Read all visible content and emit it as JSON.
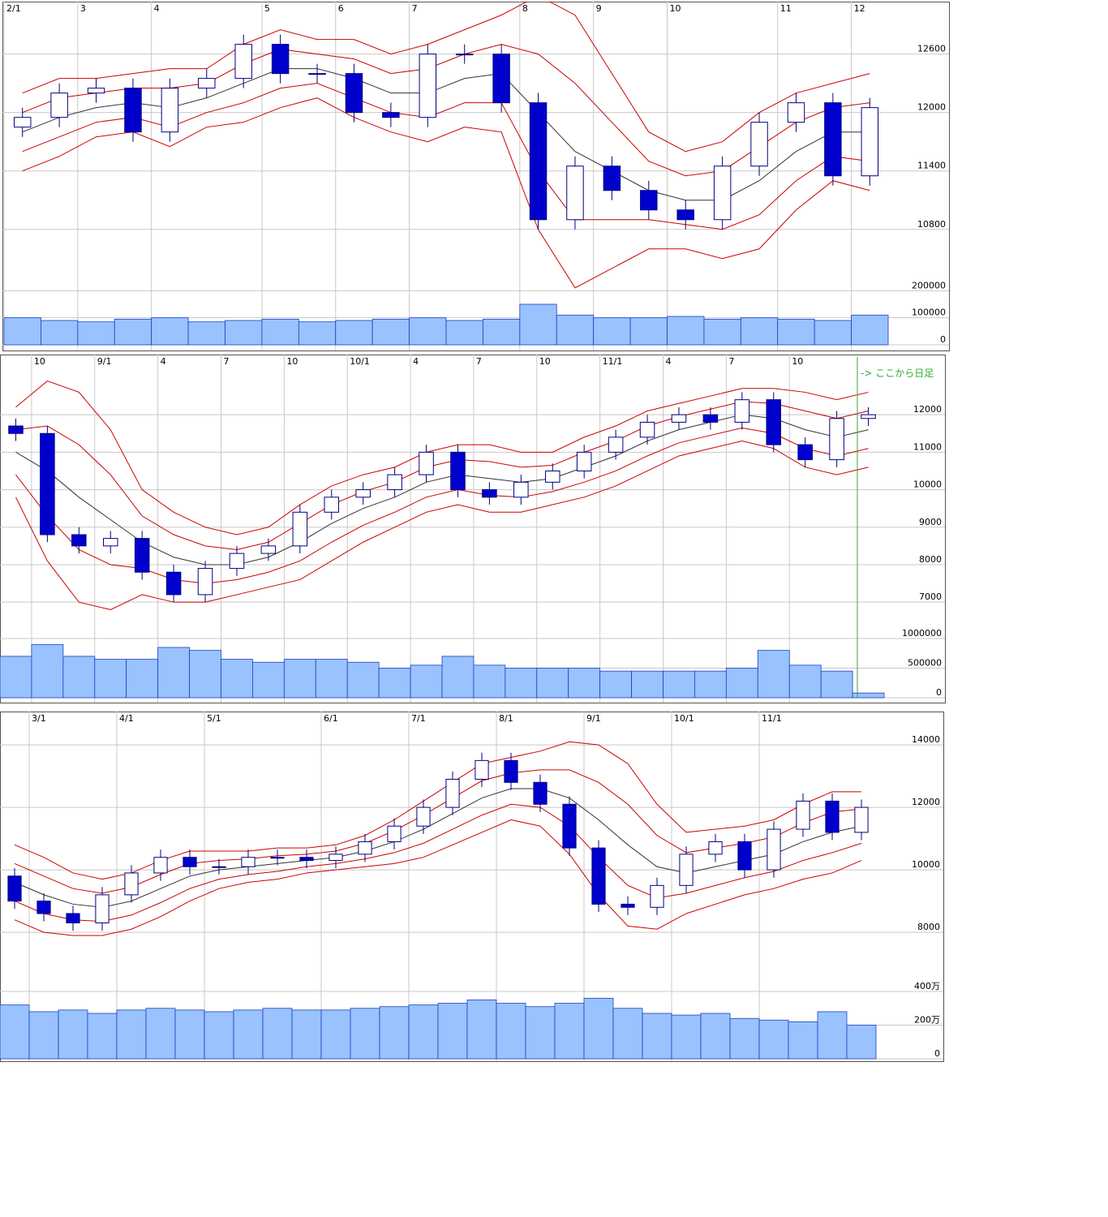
{
  "chart_data": [
    {
      "type": "candlestick",
      "color": "#0000cc",
      "grid": true,
      "categories": [
        "2/1",
        null,
        "3",
        null,
        "4",
        null,
        null,
        "5",
        null,
        "6",
        null,
        "7",
        null,
        null,
        "8",
        null,
        "9",
        null,
        "10",
        null,
        null,
        "11",
        null,
        "12"
      ],
      "open": [
        11850,
        11950,
        12200,
        12250,
        11800,
        12250,
        12350,
        12700,
        12400,
        12400,
        12000,
        11950,
        12600,
        12600,
        12100,
        10900,
        11450,
        11200,
        11000,
        10900,
        11450,
        11900,
        12100,
        11350
      ],
      "high": [
        12050,
        12300,
        12350,
        12350,
        12350,
        12450,
        12800,
        12800,
        12500,
        12500,
        12100,
        12700,
        12700,
        12700,
        12200,
        11550,
        11550,
        11300,
        11100,
        11550,
        12000,
        12200,
        12200,
        12150
      ],
      "low": [
        11750,
        11850,
        12100,
        11700,
        11700,
        12150,
        12250,
        12300,
        12300,
        11900,
        11850,
        11850,
        12500,
        12000,
        10800,
        10800,
        11100,
        10900,
        10800,
        10800,
        11350,
        11800,
        11250,
        11250
      ],
      "close": [
        11950,
        12200,
        12250,
        11800,
        12250,
        12350,
        12700,
        12400,
        12400,
        12000,
        11950,
        12600,
        12600,
        12100,
        10900,
        11450,
        11200,
        11000,
        10900,
        11450,
        11900,
        12100,
        11350,
        12050
      ],
      "ylim": [
        10140,
        13130
      ],
      "yticks": [
        10800,
        11400,
        12000,
        12600
      ],
      "bands": [
        {
          "color": "#cc0000",
          "values": [
            12200,
            12350,
            12350,
            12400,
            12450,
            12450,
            12700,
            12850,
            12750,
            12750,
            12600,
            12700,
            12850,
            13000,
            13200,
            13000,
            12400,
            11800,
            11600,
            11700,
            12000,
            12200,
            12300,
            12400
          ]
        },
        {
          "color": "#cc0000",
          "values": [
            12000,
            12150,
            12200,
            12250,
            12250,
            12300,
            12500,
            12650,
            12600,
            12550,
            12400,
            12450,
            12600,
            12700,
            12600,
            12300,
            11900,
            11500,
            11350,
            11400,
            11650,
            11900,
            12050,
            12100
          ]
        },
        {
          "color": "#333333",
          "values": [
            11800,
            11950,
            12050,
            12100,
            12050,
            12150,
            12300,
            12450,
            12450,
            12350,
            12200,
            12200,
            12350,
            12400,
            12000,
            11600,
            11400,
            11200,
            11100,
            11100,
            11300,
            11600,
            11800,
            11800
          ]
        },
        {
          "color": "#cc0000",
          "values": [
            11600,
            11750,
            11900,
            11950,
            11850,
            12000,
            12100,
            12250,
            12300,
            12150,
            12000,
            11950,
            12100,
            12100,
            11400,
            10900,
            10900,
            10900,
            10850,
            10800,
            10950,
            11300,
            11550,
            11500
          ]
        },
        {
          "color": "#cc0000",
          "values": [
            11400,
            11550,
            11750,
            11800,
            11650,
            11850,
            11900,
            12050,
            12150,
            11950,
            11800,
            11700,
            11850,
            11800,
            10800,
            10200,
            10400,
            10600,
            10600,
            10500,
            10600,
            11000,
            11300,
            11200
          ]
        }
      ],
      "volume": {
        "color": "#99c2ff",
        "values": [
          100000,
          90000,
          85000,
          95000,
          100000,
          85000,
          90000,
          95000,
          85000,
          90000,
          95000,
          100000,
          90000,
          95000,
          150000,
          110000,
          100000,
          100000,
          105000,
          95000,
          100000,
          95000,
          90000,
          110000
        ],
        "ylim": [
          0,
          240000
        ],
        "yticks": [
          0,
          100000,
          200000
        ]
      }
    },
    {
      "type": "candlestick",
      "color": "#0000cc",
      "grid": true,
      "annotation": "-> ここから日足",
      "categories": [
        null,
        "10",
        null,
        "9/1",
        null,
        "4",
        null,
        "7",
        null,
        "10",
        null,
        "10/1",
        null,
        "4",
        null,
        "7",
        null,
        "10",
        null,
        "11/1",
        null,
        "4",
        null,
        "7",
        null,
        "10",
        null,
        null
      ],
      "open": [
        11700,
        11500,
        8800,
        8500,
        8700,
        7800,
        7200,
        7900,
        8300,
        8500,
        9400,
        9800,
        10000,
        10400,
        11000,
        10000,
        9800,
        10200,
        10500,
        11000,
        11400,
        11800,
        12000,
        11800,
        12400,
        11200,
        10800,
        11900
      ],
      "high": [
        11900,
        11700,
        9000,
        8900,
        8900,
        8000,
        8100,
        8500,
        8700,
        9600,
        10000,
        10200,
        10600,
        11200,
        11200,
        10200,
        10400,
        10700,
        11200,
        11600,
        12000,
        12200,
        12200,
        12600,
        12600,
        11400,
        12100,
        12200
      ],
      "low": [
        11300,
        8600,
        8300,
        8300,
        7600,
        7000,
        7000,
        7700,
        8100,
        8300,
        9200,
        9600,
        9800,
        10200,
        9800,
        9600,
        9600,
        10000,
        10300,
        10800,
        11200,
        11600,
        11600,
        11600,
        11000,
        10600,
        10600,
        11700
      ],
      "close": [
        11500,
        8800,
        8500,
        8700,
        7800,
        7200,
        7900,
        8300,
        8500,
        9400,
        9800,
        10000,
        10400,
        11000,
        10000,
        9800,
        10200,
        10500,
        11000,
        11400,
        11800,
        12000,
        11800,
        12400,
        11200,
        10800,
        11900,
        12000
      ],
      "ylim": [
        4450,
        13540
      ],
      "yticks": [
        7000,
        8000,
        9000,
        10000,
        11000,
        12000
      ],
      "bands": [
        {
          "color": "#cc0000",
          "values": [
            12200,
            12900,
            12600,
            11600,
            10000,
            9400,
            9000,
            8800,
            9000,
            9600,
            10100,
            10400,
            10600,
            11000,
            11200,
            11200,
            11000,
            11000,
            11400,
            11700,
            12100,
            12300,
            12500,
            12700,
            12700,
            12600,
            12400,
            12600
          ]
        },
        {
          "color": "#cc0000",
          "values": [
            11600,
            11700,
            11200,
            10400,
            9300,
            8800,
            8500,
            8400,
            8600,
            9100,
            9600,
            9950,
            10200,
            10600,
            10800,
            10750,
            10600,
            10650,
            11000,
            11300,
            11700,
            11950,
            12150,
            12350,
            12300,
            12100,
            11900,
            12100
          ]
        },
        {
          "color": "#333333",
          "values": [
            11000,
            10500,
            9800,
            9200,
            8600,
            8200,
            8000,
            8000,
            8200,
            8600,
            9100,
            9500,
            9800,
            10200,
            10400,
            10300,
            10200,
            10300,
            10600,
            10900,
            11300,
            11600,
            11800,
            12000,
            11900,
            11600,
            11400,
            11600
          ]
        },
        {
          "color": "#cc0000",
          "values": [
            10400,
            9300,
            8400,
            8000,
            7900,
            7600,
            7500,
            7600,
            7800,
            8100,
            8600,
            9050,
            9400,
            9800,
            10000,
            9850,
            9800,
            9950,
            10200,
            10500,
            10900,
            11250,
            11450,
            11650,
            11500,
            11100,
            10900,
            11100
          ]
        },
        {
          "color": "#cc0000",
          "values": [
            9800,
            8100,
            7000,
            6800,
            7200,
            7000,
            7000,
            7200,
            7400,
            7600,
            8100,
            8600,
            9000,
            9400,
            9600,
            9400,
            9400,
            9600,
            9800,
            10100,
            10500,
            10900,
            11100,
            11300,
            11100,
            10600,
            10400,
            10600
          ]
        }
      ],
      "volume": {
        "color": "#99c2ff",
        "values": [
          700000,
          900000,
          700000,
          650000,
          650000,
          850000,
          800000,
          650000,
          600000,
          650000,
          650000,
          600000,
          500000,
          550000,
          700000,
          550000,
          500000,
          500000,
          500000,
          450000,
          450000,
          450000,
          450000,
          500000,
          800000,
          550000,
          450000,
          80000
        ],
        "ylim": [
          0,
          1370000
        ],
        "yticks": [
          0,
          500000,
          1000000
        ]
      }
    },
    {
      "type": "candlestick",
      "color": "#0000cc",
      "grid": true,
      "categories": [
        null,
        "3/1",
        null,
        null,
        "4/1",
        null,
        null,
        "5/1",
        null,
        null,
        null,
        "6/1",
        null,
        null,
        "7/1",
        null,
        null,
        "8/1",
        null,
        null,
        "9/1",
        null,
        null,
        "10/1",
        null,
        null,
        "11/1",
        null,
        null,
        null
      ],
      "open": [
        9800,
        9000,
        8600,
        8300,
        9200,
        9900,
        10400,
        10100,
        10100,
        10400,
        10400,
        10300,
        10500,
        10900,
        11400,
        12000,
        12900,
        13500,
        12800,
        12100,
        10700,
        8900,
        8800,
        9500,
        10500,
        10900,
        10000,
        11300,
        12200,
        11200
      ],
      "high": [
        10050,
        9250,
        8850,
        9450,
        10150,
        10650,
        10650,
        10350,
        10650,
        10650,
        10650,
        10750,
        11150,
        11650,
        12250,
        13150,
        13750,
        13750,
        13050,
        12350,
        10950,
        9150,
        9750,
        10750,
        11150,
        11150,
        11550,
        12450,
        12450,
        12250
      ],
      "low": [
        8750,
        8350,
        8050,
        8050,
        8950,
        9650,
        9850,
        9850,
        9850,
        10150,
        10050,
        10050,
        10250,
        10650,
        11150,
        11750,
        12650,
        12550,
        11850,
        10450,
        8650,
        8550,
        8550,
        9250,
        10250,
        9750,
        9750,
        11050,
        10950,
        10950
      ],
      "close": [
        9000,
        8600,
        8300,
        9200,
        9900,
        10400,
        10100,
        10100,
        10400,
        10400,
        10300,
        10500,
        10900,
        11400,
        12000,
        12900,
        13500,
        12800,
        12100,
        10700,
        8900,
        8800,
        9500,
        10500,
        10900,
        10000,
        11300,
        12200,
        11200,
        12000
      ],
      "ylim": [
        3950,
        14990
      ],
      "yticks": [
        8000,
        10000,
        12000,
        14000
      ],
      "bands": [
        {
          "color": "#cc0000",
          "values": [
            10800,
            10400,
            9900,
            9700,
            9900,
            10300,
            10600,
            10600,
            10600,
            10700,
            10700,
            10800,
            11100,
            11600,
            12200,
            12800,
            13400,
            13600,
            13800,
            14100,
            14000,
            13400,
            12100,
            11200,
            11300,
            11400,
            11600,
            12100,
            12500,
            12500
          ]
        },
        {
          "color": "#cc0000",
          "values": [
            10200,
            9800,
            9400,
            9250,
            9450,
            9850,
            10200,
            10300,
            10350,
            10450,
            10500,
            10600,
            10850,
            11250,
            11750,
            12300,
            12850,
            13100,
            13200,
            13200,
            12800,
            12100,
            11100,
            10550,
            10700,
            10850,
            11050,
            11500,
            11850,
            11950
          ]
        },
        {
          "color": "#333333",
          "values": [
            9600,
            9200,
            8900,
            8800,
            9000,
            9400,
            9800,
            10000,
            10100,
            10200,
            10300,
            10400,
            10600,
            10900,
            11300,
            11800,
            12300,
            12600,
            12600,
            12300,
            11600,
            10800,
            10100,
            9900,
            10100,
            10300,
            10500,
            10900,
            11200,
            11400
          ]
        },
        {
          "color": "#cc0000",
          "values": [
            9000,
            8600,
            8400,
            8350,
            8550,
            8950,
            9400,
            9700,
            9850,
            9950,
            10100,
            10200,
            10350,
            10550,
            10850,
            11300,
            11750,
            12100,
            12000,
            11400,
            10400,
            9500,
            9100,
            9250,
            9500,
            9750,
            9950,
            10300,
            10550,
            10850
          ]
        },
        {
          "color": "#cc0000",
          "values": [
            8400,
            8000,
            7900,
            7900,
            8100,
            8500,
            9000,
            9400,
            9600,
            9700,
            9900,
            10000,
            10100,
            10200,
            10400,
            10800,
            11200,
            11600,
            11400,
            10500,
            9200,
            8200,
            8100,
            8600,
            8900,
            9200,
            9400,
            9700,
            9900,
            10300
          ]
        }
      ],
      "volume": {
        "color": "#99c2ff",
        "values": [
          3200000,
          2800000,
          2900000,
          2700000,
          2900000,
          3000000,
          2900000,
          2800000,
          2900000,
          3000000,
          2900000,
          2900000,
          3000000,
          3100000,
          3200000,
          3300000,
          3500000,
          3300000,
          3100000,
          3300000,
          3600000,
          3000000,
          2700000,
          2600000,
          2700000,
          2400000,
          2300000,
          2200000,
          2800000,
          2000000
        ],
        "ylim": [
          0,
          4340000
        ],
        "yticks": [
          0,
          {
            "value": 2000000,
            "label": "200万"
          },
          {
            "value": 4000000,
            "label": "400万"
          }
        ]
      }
    }
  ]
}
